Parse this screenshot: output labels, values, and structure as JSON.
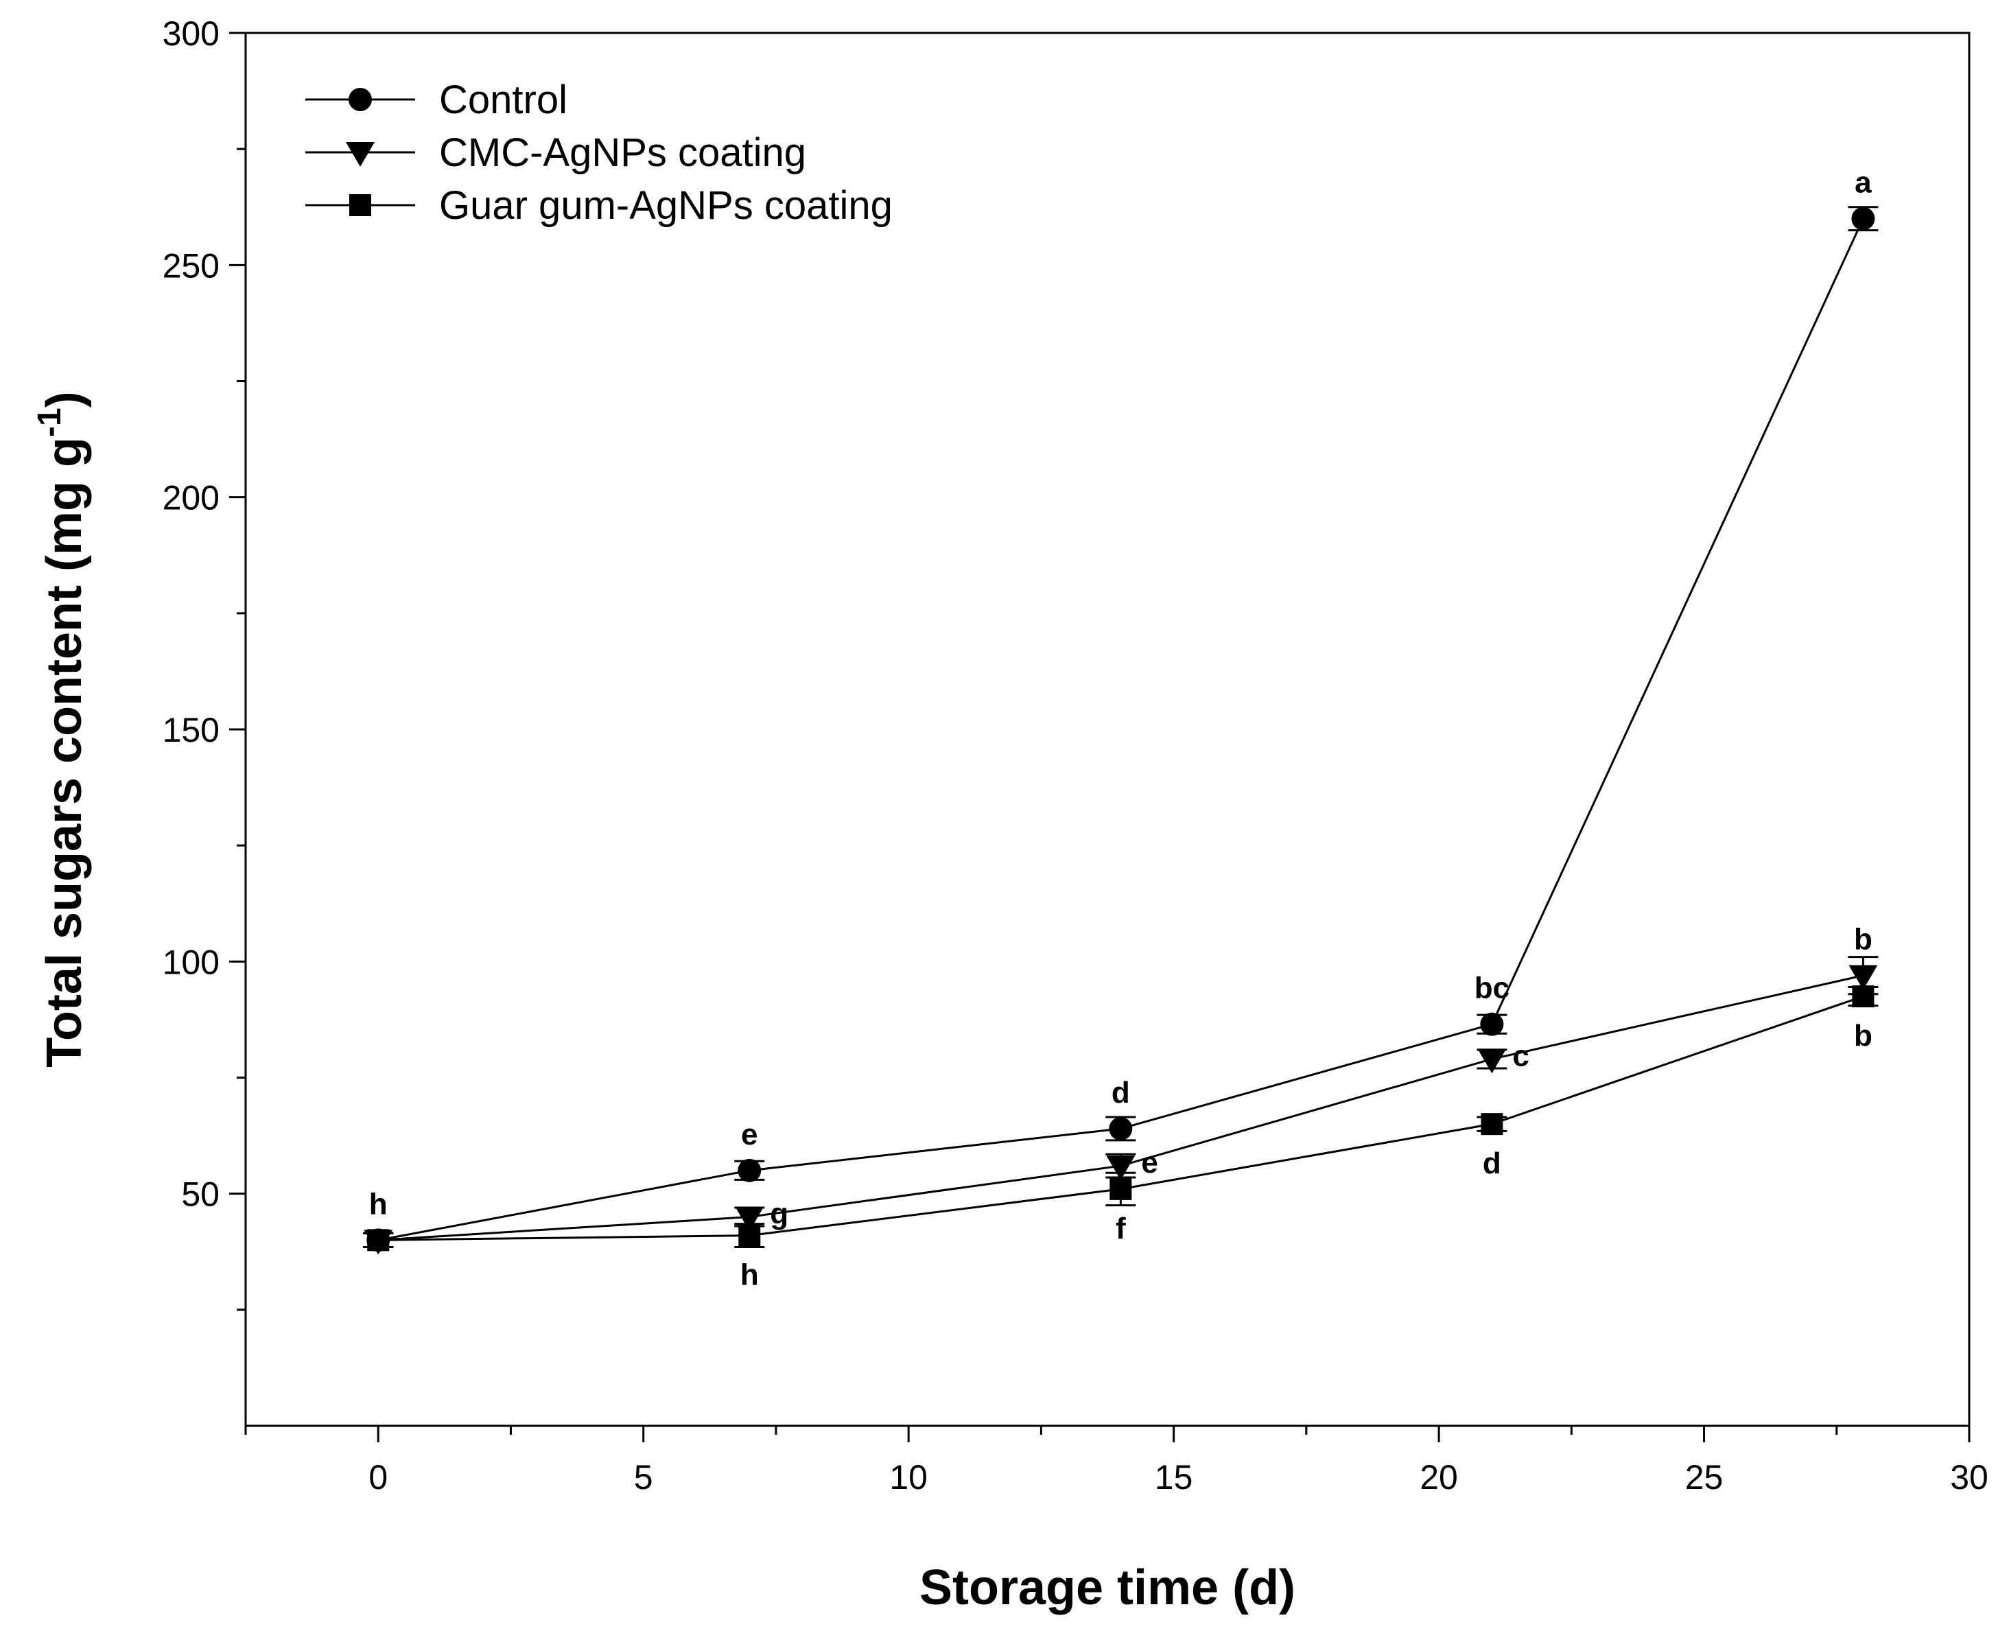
{
  "chart_data": {
    "type": "line",
    "title": "",
    "xlabel": "Storage time (d)",
    "ylabel_main": "Total sugars content (mg g",
    "ylabel_sup": "-1",
    "ylabel_close": ")",
    "xlim": [
      -2.5,
      30
    ],
    "ylim": [
      0,
      300
    ],
    "xticks": [
      0,
      5,
      10,
      15,
      20,
      25,
      30
    ],
    "xticks_minor": [
      -2.5,
      2.5,
      7.5,
      12.5,
      17.5,
      22.5,
      27.5
    ],
    "yticks": [
      50,
      100,
      150,
      200,
      250,
      300
    ],
    "yticks_minor": [
      25,
      75,
      125,
      175,
      225,
      275
    ],
    "xtick_labels": [
      "0",
      "5",
      "10",
      "15",
      "20",
      "25",
      "30"
    ],
    "ytick_labels": [
      "50",
      "100",
      "150",
      "200",
      "250",
      "300"
    ],
    "legend_position": "top-left",
    "x": [
      0,
      7,
      14,
      21,
      28
    ],
    "series": [
      {
        "name": "Control",
        "marker": "circle",
        "values": [
          40,
          55,
          64,
          86.5,
          260
        ],
        "errors": [
          1.5,
          2,
          2.5,
          2,
          2.5
        ],
        "letters": [
          "h",
          "e",
          "d",
          "bc",
          "a"
        ],
        "letter_pos": [
          "above",
          "above",
          "above",
          "above",
          "above"
        ]
      },
      {
        "name": "CMC-AgNPs coating",
        "marker": "triangle-down",
        "values": [
          40,
          45,
          56,
          79,
          97
        ],
        "errors": [
          1.5,
          2,
          2.5,
          2,
          4
        ],
        "letters": [
          "",
          "g",
          "e",
          "c",
          "b"
        ],
        "letter_pos": [
          "",
          "right",
          "right",
          "right",
          "above"
        ]
      },
      {
        "name": "Guar gum-AgNPs coating",
        "marker": "square",
        "values": [
          40,
          41,
          51,
          65,
          92.5
        ],
        "errors": [
          1.5,
          2.5,
          3.5,
          1.5,
          2
        ],
        "letters": [
          "",
          "h",
          "f",
          "d",
          "b"
        ],
        "letter_pos": [
          "",
          "below",
          "below",
          "below",
          "below"
        ]
      }
    ]
  }
}
